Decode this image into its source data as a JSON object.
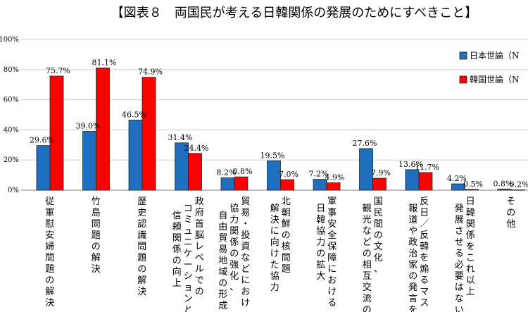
{
  "chart_data": {
    "type": "bar",
    "title": "【図表８　両国民が考える日韓関係の発展のためにすべきこと】",
    "xlabel": "",
    "ylabel": "",
    "ylim": [
      0,
      100
    ],
    "yticks": [
      "0%",
      "20%",
      "40%",
      "60%",
      "80%",
      "100%"
    ],
    "grid": true,
    "legend_position": "right",
    "value_labels": {
      "japan": [
        "29.6%",
        "39.0%",
        "46.5%",
        "31.4%",
        "8.2%",
        "19.5%",
        "7.2%",
        "27.6%",
        "13.6%",
        "4.2%",
        "0.8%"
      ],
      "korea": [
        "75.7%",
        "81.1%",
        "74.9%",
        "24.4%",
        "8.8%",
        "7.0%",
        "4.9%",
        "7.9%",
        "11.7%",
        "0.5%",
        "0.2%"
      ]
    },
    "categories": [
      [
        "従軍慰安婦問題の解決"
      ],
      [
        "竹島問題の解決"
      ],
      [
        "歴史認識問題の解決"
      ],
      [
        "政府首脳レベルでの",
        "コミュニケーションと",
        "信頼関係の向上"
      ],
      [
        "貿易・投資などにおけ",
        "協力関係の強化、",
        "自由貿易地域の形成"
      ],
      [
        "北朝鮮の核問題",
        "解決に向けた協力"
      ],
      [
        "軍事安全保障における",
        "日韓協力の拡大"
      ],
      [
        "国民間の文化、",
        "観光などの相互交流の"
      ],
      [
        "反日／反韓を煽るマス",
        "報道や政治家の発言を"
      ],
      [
        "日韓関係をこれ以上",
        "発展させる必要はない"
      ],
      [
        "その他"
      ]
    ],
    "series": [
      {
        "name": "日本世論（N",
        "color": "#1f6fc0",
        "values": [
          29.6,
          39.0,
          46.5,
          31.4,
          8.2,
          19.5,
          7.2,
          27.6,
          13.6,
          4.2,
          0.8
        ]
      },
      {
        "name": "韓国世論（N",
        "color": "#ff0000",
        "values": [
          75.7,
          81.1,
          74.9,
          24.4,
          8.8,
          7.0,
          4.9,
          7.9,
          11.7,
          0.5,
          0.2
        ]
      }
    ]
  }
}
